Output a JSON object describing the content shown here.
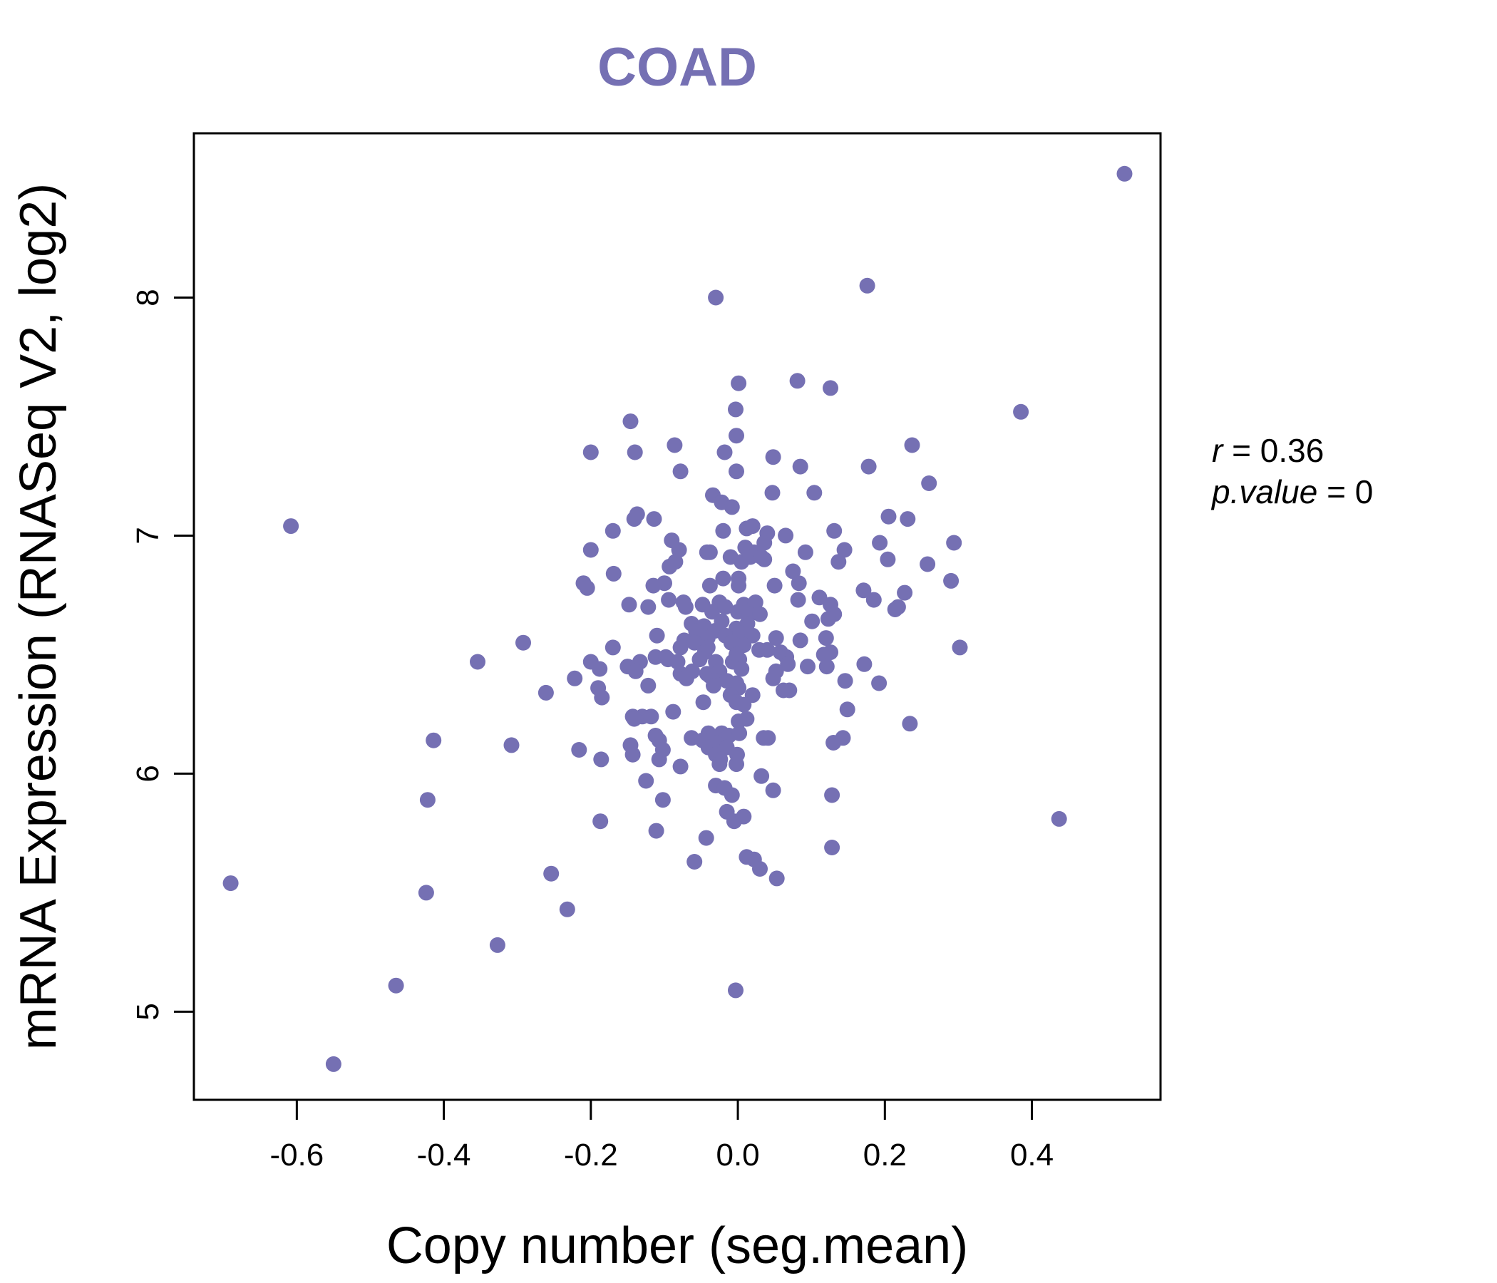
{
  "chart_data": {
    "type": "scatter",
    "title": "COAD",
    "xlabel": "Copy number (seg.mean)",
    "ylabel": "mRNA Expression (RNASeq V2, log2)",
    "xlim": [
      -0.74,
      0.575
    ],
    "ylim": [
      4.63,
      8.69
    ],
    "x_ticks": [
      -0.6,
      -0.4,
      -0.2,
      0.0,
      0.2,
      0.4
    ],
    "x_tick_labels": [
      "-0.6",
      "-0.4",
      "-0.2",
      "0.0",
      "0.2",
      "0.4"
    ],
    "y_ticks": [
      5,
      6,
      7,
      8
    ],
    "y_tick_labels": [
      "5",
      "6",
      "7",
      "8"
    ],
    "grid": false,
    "colors": {
      "points": "#7570b3",
      "title": "#7570b3",
      "axes": "#000000"
    },
    "stats": {
      "r_label": "r",
      "r_value": "0.36",
      "p_label": "p.value",
      "p_value": "0"
    },
    "points": [
      [
        0.526,
        8.52
      ],
      [
        -0.03,
        8.0
      ],
      [
        0.176,
        8.05
      ],
      [
        0.081,
        7.65
      ],
      [
        0.001,
        7.64
      ],
      [
        0.126,
        7.62
      ],
      [
        0.385,
        7.52
      ],
      [
        -0.146,
        7.48
      ],
      [
        -0.003,
        7.53
      ],
      [
        -0.002,
        7.42
      ],
      [
        -0.2,
        7.35
      ],
      [
        -0.14,
        7.35
      ],
      [
        -0.086,
        7.38
      ],
      [
        -0.018,
        7.35
      ],
      [
        0.048,
        7.33
      ],
      [
        0.237,
        7.38
      ],
      [
        -0.078,
        7.27
      ],
      [
        -0.002,
        7.27
      ],
      [
        0.085,
        7.29
      ],
      [
        0.178,
        7.29
      ],
      [
        0.26,
        7.22
      ],
      [
        -0.034,
        7.17
      ],
      [
        0.047,
        7.18
      ],
      [
        0.104,
        7.18
      ],
      [
        -0.022,
        7.14
      ],
      [
        -0.008,
        7.12
      ],
      [
        -0.137,
        7.09
      ],
      [
        -0.141,
        7.07
      ],
      [
        -0.114,
        7.07
      ],
      [
        -0.608,
        7.04
      ],
      [
        -0.17,
        7.02
      ],
      [
        -0.02,
        7.02
      ],
      [
        0.012,
        7.03
      ],
      [
        0.02,
        7.04
      ],
      [
        0.04,
        7.01
      ],
      [
        0.065,
        7.0
      ],
      [
        0.131,
        7.02
      ],
      [
        0.205,
        7.08
      ],
      [
        0.231,
        7.07
      ],
      [
        -0.09,
        6.98
      ],
      [
        -0.2,
        6.94
      ],
      [
        -0.08,
        6.94
      ],
      [
        -0.042,
        6.93
      ],
      [
        0.036,
        6.97
      ],
      [
        0.193,
        6.97
      ],
      [
        0.294,
        6.97
      ],
      [
        -0.085,
        6.89
      ],
      [
        -0.01,
        6.91
      ],
      [
        -0.038,
        6.93
      ],
      [
        0.01,
        6.95
      ],
      [
        0.022,
        6.93
      ],
      [
        0.036,
        6.9
      ],
      [
        0.092,
        6.93
      ],
      [
        0.145,
        6.94
      ],
      [
        -0.093,
        6.87
      ],
      [
        0.005,
        6.89
      ],
      [
        0.017,
        6.91
      ],
      [
        0.032,
        6.91
      ],
      [
        0.137,
        6.89
      ],
      [
        0.204,
        6.9
      ],
      [
        0.258,
        6.88
      ],
      [
        -0.169,
        6.84
      ],
      [
        0.075,
        6.85
      ],
      [
        0.001,
        6.82
      ],
      [
        -0.21,
        6.8
      ],
      [
        -0.205,
        6.78
      ],
      [
        -0.038,
        6.79
      ],
      [
        -0.02,
        6.82
      ],
      [
        0.001,
        6.79
      ],
      [
        0.05,
        6.79
      ],
      [
        0.083,
        6.8
      ],
      [
        0.29,
        6.81
      ],
      [
        -0.115,
        6.79
      ],
      [
        -0.1,
        6.8
      ],
      [
        0.111,
        6.74
      ],
      [
        0.171,
        6.77
      ],
      [
        0.185,
        6.73
      ],
      [
        0.227,
        6.76
      ],
      [
        -0.148,
        6.71
      ],
      [
        -0.122,
        6.7
      ],
      [
        -0.094,
        6.73
      ],
      [
        -0.074,
        6.72
      ],
      [
        -0.048,
        6.71
      ],
      [
        -0.025,
        6.72
      ],
      [
        0.008,
        6.71
      ],
      [
        0.024,
        6.72
      ],
      [
        0.082,
        6.73
      ],
      [
        0.126,
        6.71
      ],
      [
        0.218,
        6.7
      ],
      [
        -0.071,
        6.7
      ],
      [
        -0.035,
        6.68
      ],
      [
        -0.017,
        6.7
      ],
      [
        0.0,
        6.68
      ],
      [
        0.016,
        6.67
      ],
      [
        0.03,
        6.67
      ],
      [
        0.101,
        6.64
      ],
      [
        0.131,
        6.67
      ],
      [
        0.123,
        6.65
      ],
      [
        0.214,
        6.69
      ],
      [
        -0.063,
        6.63
      ],
      [
        -0.046,
        6.62
      ],
      [
        -0.031,
        6.6
      ],
      [
        -0.022,
        6.64
      ],
      [
        -0.002,
        6.61
      ],
      [
        0.013,
        6.63
      ],
      [
        -0.057,
        6.6
      ],
      [
        -0.073,
        6.56
      ],
      [
        -0.11,
        6.58
      ],
      [
        -0.17,
        6.53
      ],
      [
        -0.292,
        6.55
      ],
      [
        -0.041,
        6.57
      ],
      [
        -0.017,
        6.58
      ],
      [
        0.003,
        6.59
      ],
      [
        0.02,
        6.58
      ],
      [
        0.052,
        6.57
      ],
      [
        0.085,
        6.56
      ],
      [
        0.12,
        6.57
      ],
      [
        0.302,
        6.53
      ],
      [
        -0.059,
        6.55
      ],
      [
        -0.041,
        6.53
      ],
      [
        -0.009,
        6.55
      ],
      [
        0.008,
        6.54
      ],
      [
        0.029,
        6.52
      ],
      [
        0.04,
        6.52
      ],
      [
        -0.078,
        6.53
      ],
      [
        -0.045,
        6.51
      ],
      [
        -0.002,
        6.5
      ],
      [
        0.058,
        6.51
      ],
      [
        0.066,
        6.49
      ],
      [
        0.117,
        6.5
      ],
      [
        0.126,
        6.51
      ],
      [
        -0.112,
        6.49
      ],
      [
        -0.098,
        6.49
      ],
      [
        -0.133,
        6.47
      ],
      [
        -0.095,
        6.48
      ],
      [
        -0.2,
        6.47
      ],
      [
        -0.354,
        6.47
      ],
      [
        -0.15,
        6.45
      ],
      [
        -0.082,
        6.47
      ],
      [
        -0.052,
        6.48
      ],
      [
        -0.03,
        6.47
      ],
      [
        -0.007,
        6.47
      ],
      [
        0.002,
        6.48
      ],
      [
        0.068,
        6.46
      ],
      [
        0.095,
        6.45
      ],
      [
        0.121,
        6.45
      ],
      [
        0.172,
        6.46
      ],
      [
        -0.188,
        6.44
      ],
      [
        -0.139,
        6.43
      ],
      [
        -0.078,
        6.42
      ],
      [
        -0.062,
        6.43
      ],
      [
        -0.042,
        6.42
      ],
      [
        -0.038,
        6.41
      ],
      [
        -0.025,
        6.43
      ],
      [
        0.005,
        6.44
      ],
      [
        0.052,
        6.43
      ],
      [
        -0.222,
        6.4
      ],
      [
        -0.07,
        6.4
      ],
      [
        -0.03,
        6.39
      ],
      [
        -0.015,
        6.39
      ],
      [
        0.048,
        6.4
      ],
      [
        0.146,
        6.39
      ],
      [
        0.192,
        6.38
      ],
      [
        -0.19,
        6.36
      ],
      [
        -0.122,
        6.37
      ],
      [
        -0.033,
        6.37
      ],
      [
        -0.002,
        6.38
      ],
      [
        0.001,
        6.36
      ],
      [
        -0.261,
        6.34
      ],
      [
        -0.185,
        6.32
      ],
      [
        -0.01,
        6.33
      ],
      [
        0.02,
        6.33
      ],
      [
        0.062,
        6.35
      ],
      [
        0.07,
        6.35
      ],
      [
        -0.002,
        6.3
      ],
      [
        -0.047,
        6.3
      ],
      [
        0.008,
        6.29
      ],
      [
        -0.088,
        6.26
      ],
      [
        0.149,
        6.27
      ],
      [
        -0.143,
        6.24
      ],
      [
        -0.13,
        6.24
      ],
      [
        -0.118,
        6.24
      ],
      [
        -0.141,
        6.23
      ],
      [
        0.012,
        6.23
      ],
      [
        0.001,
        6.22
      ],
      [
        0.234,
        6.21
      ],
      [
        -0.04,
        6.17
      ],
      [
        -0.112,
        6.16
      ],
      [
        -0.022,
        6.17
      ],
      [
        -0.012,
        6.16
      ],
      [
        0.002,
        6.17
      ],
      [
        0.035,
        6.15
      ],
      [
        0.041,
        6.15
      ],
      [
        -0.414,
        6.14
      ],
      [
        -0.146,
        6.12
      ],
      [
        -0.063,
        6.15
      ],
      [
        -0.048,
        6.14
      ],
      [
        -0.03,
        6.13
      ],
      [
        -0.107,
        6.14
      ],
      [
        0.13,
        6.13
      ],
      [
        0.143,
        6.15
      ],
      [
        -0.308,
        6.12
      ],
      [
        -0.216,
        6.1
      ],
      [
        -0.102,
        6.1
      ],
      [
        -0.04,
        6.11
      ],
      [
        -0.015,
        6.11
      ],
      [
        -0.143,
        6.08
      ],
      [
        -0.03,
        6.08
      ],
      [
        -0.186,
        6.06
      ],
      [
        -0.107,
        6.06
      ],
      [
        -0.024,
        6.06
      ],
      [
        -0.001,
        6.08
      ],
      [
        -0.078,
        6.03
      ],
      [
        -0.025,
        6.04
      ],
      [
        -0.002,
        6.04
      ],
      [
        0.032,
        5.99
      ],
      [
        -0.125,
        5.97
      ],
      [
        -0.03,
        5.95
      ],
      [
        0.048,
        5.93
      ],
      [
        -0.018,
        5.94
      ],
      [
        -0.008,
        5.91
      ],
      [
        0.128,
        5.91
      ],
      [
        -0.422,
        5.89
      ],
      [
        -0.102,
        5.89
      ],
      [
        -0.015,
        5.84
      ],
      [
        0.008,
        5.82
      ],
      [
        -0.005,
        5.8
      ],
      [
        -0.187,
        5.8
      ],
      [
        0.437,
        5.81
      ],
      [
        -0.111,
        5.76
      ],
      [
        -0.043,
        5.73
      ],
      [
        0.128,
        5.69
      ],
      [
        0.012,
        5.65
      ],
      [
        0.022,
        5.64
      ],
      [
        -0.059,
        5.63
      ],
      [
        0.03,
        5.6
      ],
      [
        -0.254,
        5.58
      ],
      [
        0.053,
        5.56
      ],
      [
        -0.69,
        5.54
      ],
      [
        -0.424,
        5.5
      ],
      [
        -0.232,
        5.43
      ],
      [
        -0.327,
        5.28
      ],
      [
        -0.465,
        5.11
      ],
      [
        -0.003,
        5.09
      ],
      [
        -0.55,
        4.78
      ]
    ]
  }
}
